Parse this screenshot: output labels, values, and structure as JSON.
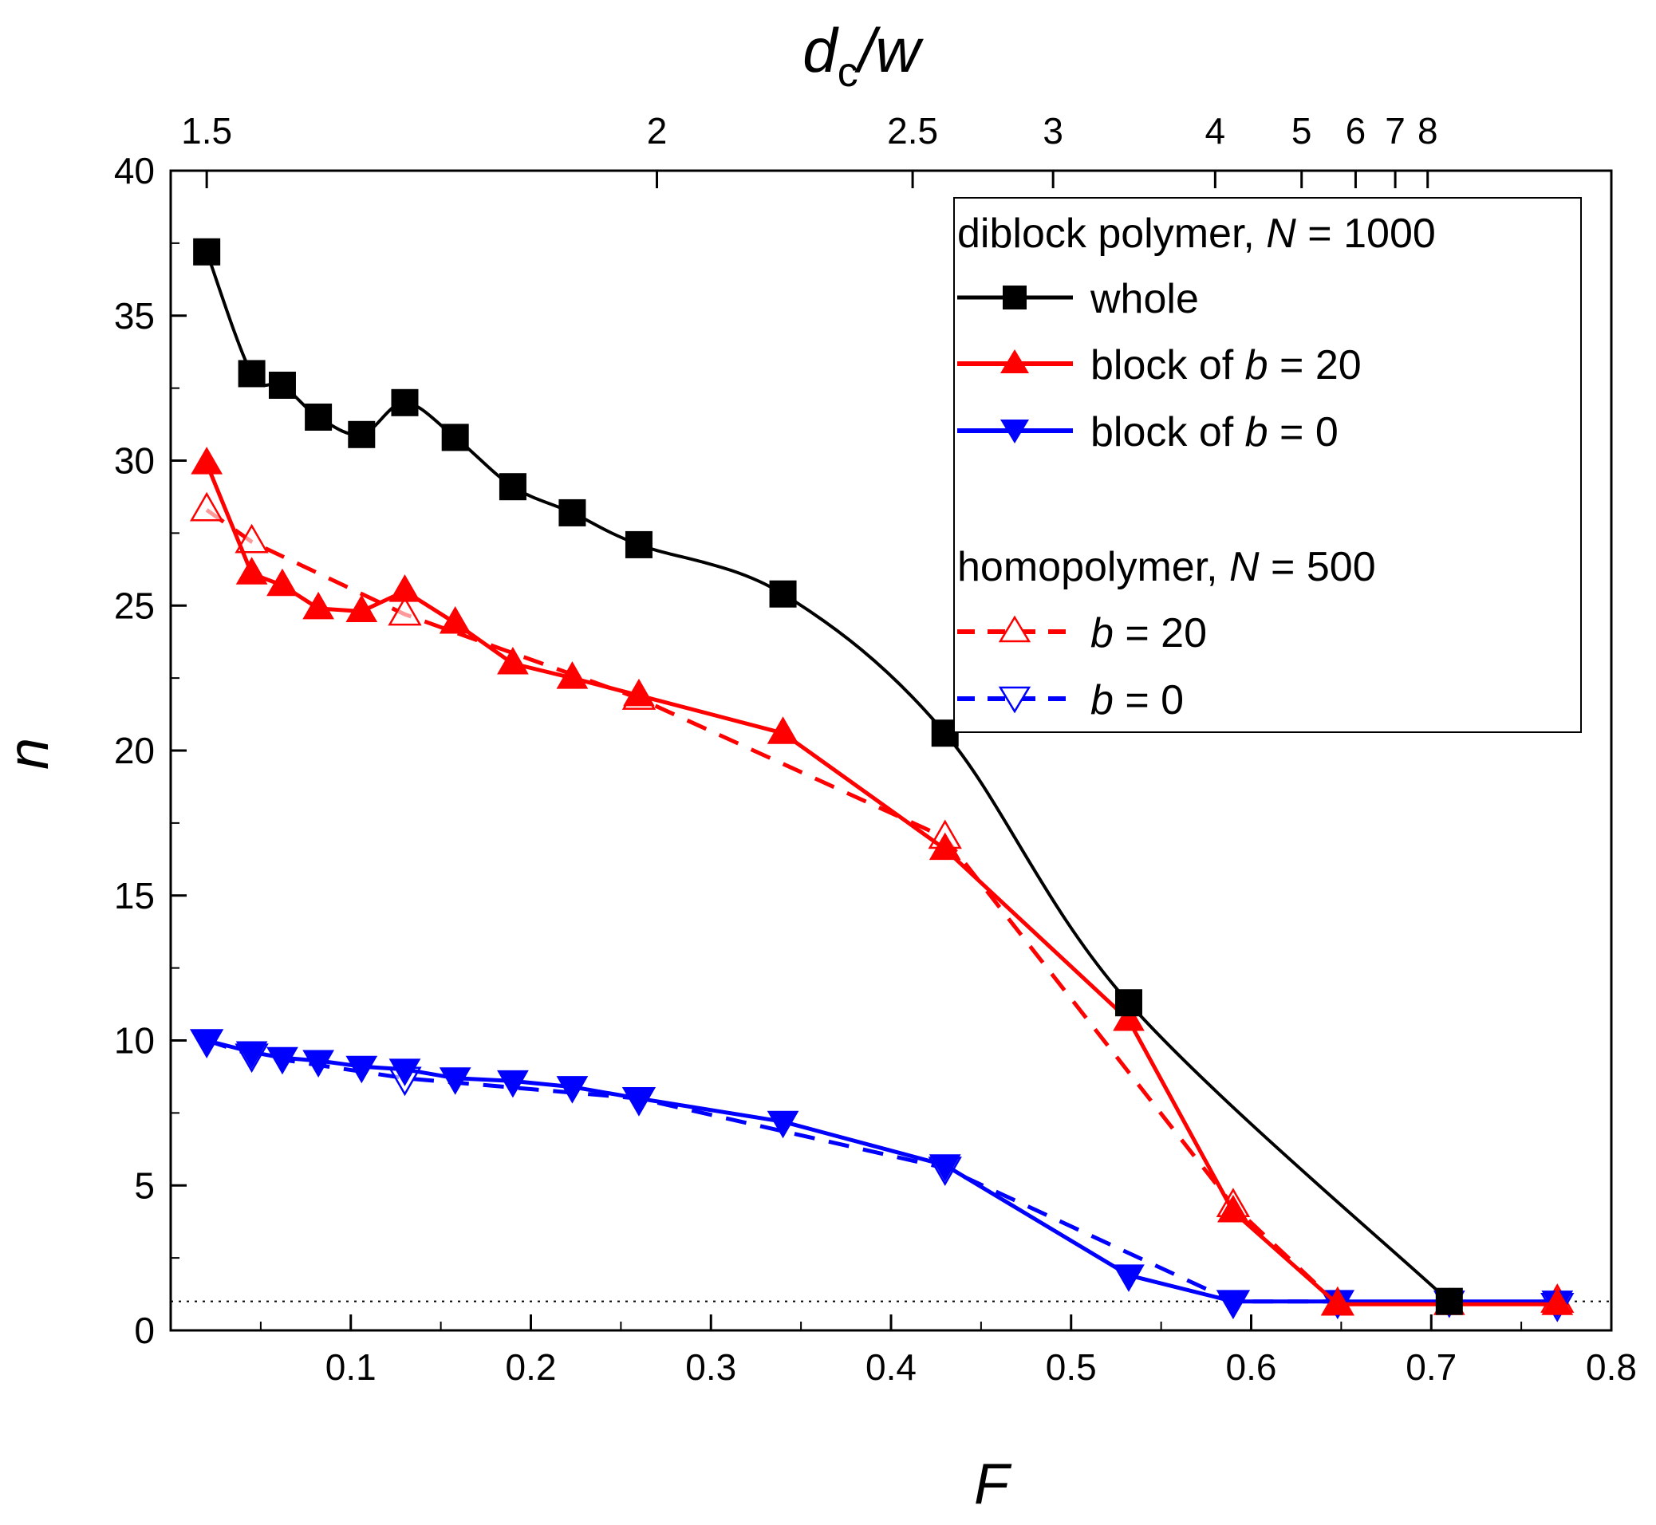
{
  "chart_data": {
    "type": "line",
    "xlabel": "F",
    "ylabel": "n",
    "top_xlabel": "d_c/w",
    "top_xlabel_main": "d",
    "top_xlabel_sub": "c",
    "top_xlabel_rest": "/w",
    "xlim": [
      0.0,
      0.8
    ],
    "ylim": [
      0,
      40
    ],
    "x_ticks": [
      0.1,
      0.2,
      0.3,
      0.4,
      0.5,
      0.6,
      0.7,
      0.8
    ],
    "x_tick_labels": [
      "0.1",
      "0.2",
      "0.3",
      "0.4",
      "0.5",
      "0.6",
      "0.7",
      "0.8"
    ],
    "y_ticks": [
      0,
      5,
      10,
      15,
      20,
      25,
      30,
      35,
      40
    ],
    "y_tick_labels": [
      "0",
      "5",
      "10",
      "15",
      "20",
      "25",
      "30",
      "35",
      "40"
    ],
    "top_ticks": [
      {
        "label": "1.5",
        "F": 0.02
      },
      {
        "label": "2",
        "F": 0.27
      },
      {
        "label": "2.5",
        "F": 0.412
      },
      {
        "label": "3",
        "F": 0.49
      },
      {
        "label": "4",
        "F": 0.58
      },
      {
        "label": "5",
        "F": 0.628
      },
      {
        "label": "6",
        "F": 0.658
      },
      {
        "label": "7",
        "F": 0.68
      },
      {
        "label": "8",
        "F": 0.698
      }
    ],
    "reference_line": {
      "y": 1,
      "style": "dotted"
    },
    "series": [
      {
        "name": "whole",
        "color": "#000000",
        "marker": "square-filled",
        "dash": "solid",
        "x": [
          0.02,
          0.045,
          0.062,
          0.082,
          0.106,
          0.13,
          0.158,
          0.19,
          0.223,
          0.26,
          0.34,
          0.43,
          0.532,
          0.71
        ],
        "y": [
          37.2,
          33.0,
          32.6,
          31.5,
          30.9,
          32.0,
          30.8,
          29.1,
          28.2,
          27.1,
          25.4,
          20.6,
          11.3,
          1.0
        ]
      },
      {
        "name": "block of b = 20",
        "color": "#ff0000",
        "marker": "triangle-up-filled",
        "dash": "solid",
        "x": [
          0.02,
          0.045,
          0.062,
          0.082,
          0.106,
          0.13,
          0.158,
          0.19,
          0.223,
          0.26,
          0.34,
          0.43,
          0.532,
          0.59,
          0.648,
          0.71,
          0.77
        ],
        "y": [
          29.9,
          26.1,
          25.7,
          24.9,
          24.8,
          25.5,
          24.4,
          23.0,
          22.5,
          21.9,
          20.6,
          16.6,
          10.7,
          4.1,
          0.9,
          0.9,
          0.9
        ]
      },
      {
        "name": "block of b = 0",
        "color": "#0000ff",
        "marker": "triangle-down-filled",
        "dash": "solid",
        "x": [
          0.02,
          0.045,
          0.062,
          0.082,
          0.106,
          0.13,
          0.158,
          0.19,
          0.223,
          0.26,
          0.34,
          0.43,
          0.532,
          0.59,
          0.648,
          0.71,
          0.77
        ],
        "y": [
          10.0,
          9.6,
          9.4,
          9.3,
          9.1,
          9.0,
          8.7,
          8.6,
          8.4,
          8.0,
          7.2,
          5.7,
          1.9,
          1.0,
          1.0,
          1.0,
          1.0
        ]
      },
      {
        "name": "b = 20",
        "group": "homopolymer",
        "color": "#ff0000",
        "marker": "triangle-up-open",
        "dash": "dashed",
        "x": [
          0.02,
          0.045,
          0.13,
          0.26,
          0.43,
          0.59,
          0.648,
          0.77
        ],
        "y": [
          28.3,
          27.2,
          24.7,
          21.8,
          17.0,
          4.3,
          0.9,
          1.0
        ]
      },
      {
        "name": "b = 0",
        "group": "homopolymer",
        "color": "#0000ff",
        "marker": "triangle-down-open",
        "dash": "dashed",
        "x": [
          0.02,
          0.045,
          0.13,
          0.26,
          0.43,
          0.59,
          0.648,
          0.77
        ],
        "y": [
          10.0,
          9.5,
          8.7,
          8.0,
          5.6,
          1.0,
          1.0,
          0.9
        ]
      }
    ],
    "legend": {
      "position": "top-right",
      "header1": {
        "prefix": "diblock polymer, ",
        "var": "N",
        "suffix": " = 1000"
      },
      "entry_whole": {
        "text": "whole"
      },
      "entry_block20": {
        "prefix": "block of ",
        "var": "b",
        "suffix": " = 20"
      },
      "entry_block0": {
        "prefix": "block of ",
        "var": "b",
        "suffix": " = 0"
      },
      "header2": {
        "prefix": "homopolymer, ",
        "var": "N",
        "suffix": " = 500"
      },
      "entry_homo20": {
        "prefix": "",
        "var": "b",
        "suffix": " = 20"
      },
      "entry_homo0": {
        "prefix": "",
        "var": "b",
        "suffix": " = 0"
      }
    }
  }
}
